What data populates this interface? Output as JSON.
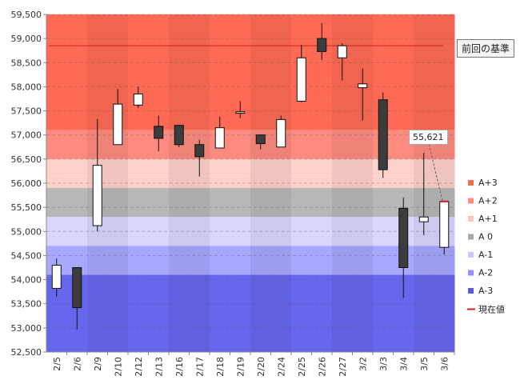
{
  "chart_data": {
    "type": "candlestick",
    "categories": [
      "2/5",
      "2/6",
      "2/9",
      "2/10",
      "2/12",
      "2/13",
      "2/16",
      "2/17",
      "2/18",
      "2/19",
      "2/20",
      "2/24",
      "2/25",
      "2/26",
      "2/27",
      "3/2",
      "3/3",
      "3/4",
      "3/5",
      "3/6"
    ],
    "ohlc": [
      {
        "open": 53820,
        "high": 54440,
        "low": 53650,
        "close": 54300
      },
      {
        "open": 54250,
        "high": 54250,
        "low": 52970,
        "close": 53420
      },
      {
        "open": 55120,
        "high": 57330,
        "low": 55000,
        "close": 56370
      },
      {
        "open": 56800,
        "high": 57950,
        "low": 56800,
        "close": 57640
      },
      {
        "open": 57620,
        "high": 58000,
        "low": 57560,
        "close": 57850
      },
      {
        "open": 57180,
        "high": 57400,
        "low": 56660,
        "close": 56930
      },
      {
        "open": 57200,
        "high": 57200,
        "low": 56750,
        "close": 56800
      },
      {
        "open": 56800,
        "high": 56900,
        "low": 56140,
        "close": 56550
      },
      {
        "open": 56730,
        "high": 57380,
        "low": 56730,
        "close": 57150
      },
      {
        "open": 57450,
        "high": 57700,
        "low": 57350,
        "close": 57480
      },
      {
        "open": 57000,
        "high": 57000,
        "low": 56700,
        "close": 56820
      },
      {
        "open": 56750,
        "high": 57400,
        "low": 56750,
        "close": 57320
      },
      {
        "open": 57700,
        "high": 58870,
        "low": 57680,
        "close": 58600
      },
      {
        "open": 59000,
        "high": 59320,
        "low": 58550,
        "close": 58730
      },
      {
        "open": 58600,
        "high": 58900,
        "low": 58130,
        "close": 58850
      },
      {
        "open": 57980,
        "high": 58380,
        "low": 57300,
        "close": 58060
      },
      {
        "open": 57730,
        "high": 57880,
        "low": 56110,
        "close": 56280
      },
      {
        "open": 55480,
        "high": 55700,
        "low": 53620,
        "close": 54250
      },
      {
        "open": 55200,
        "high": 56630,
        "low": 54920,
        "close": 55300
      },
      {
        "open": 54670,
        "high": 55630,
        "low": 54520,
        "close": 55621
      }
    ],
    "ylim": [
      52500,
      59500
    ],
    "yticks": [
      "52,500",
      "53,000",
      "53,500",
      "54,000",
      "54,500",
      "55,000",
      "55,500",
      "56,000",
      "56,500",
      "57,000",
      "57,500",
      "58,000",
      "58,500",
      "59,000",
      "59,500"
    ],
    "yticks_values": [
      52500,
      53000,
      53500,
      54000,
      54500,
      55000,
      55500,
      56000,
      56500,
      57000,
      57500,
      58000,
      58500,
      59000,
      59500
    ],
    "grid": true,
    "bands": [
      {
        "label": "A+3",
        "from": 57100,
        "to": 59500,
        "color": "#ff6a55",
        "legend_color": "#ff6a55"
      },
      {
        "label": "A+2",
        "from": 56500,
        "to": 57100,
        "color": "#ff8b80",
        "legend_color": "#ff8b80"
      },
      {
        "label": "A+1",
        "from": 55900,
        "to": 56500,
        "color": "#ffd2cc",
        "legend_color": "#ffc4bd"
      },
      {
        "label": "A 0",
        "from": 55300,
        "to": 55900,
        "color": "#b8b8b8",
        "legend_color": "#a8a8a8"
      },
      {
        "label": "A-1",
        "from": 54700,
        "to": 55300,
        "color": "#d8d8ff",
        "legend_color": "#c8c8ff"
      },
      {
        "label": "A-2",
        "from": 54100,
        "to": 54700,
        "color": "#a8a8ff",
        "legend_color": "#9090ff"
      },
      {
        "label": "A-3",
        "from": 52500,
        "to": 54100,
        "color": "#6666ee",
        "legend_color": "#5858ee"
      }
    ],
    "reference_line": {
      "label": "前回の基準",
      "value": 58850,
      "color": "#cc2020"
    },
    "current_value": {
      "label": "現在値",
      "value": 55621,
      "display": "55,621",
      "color": "#cc2020"
    },
    "legend_position": "right"
  }
}
